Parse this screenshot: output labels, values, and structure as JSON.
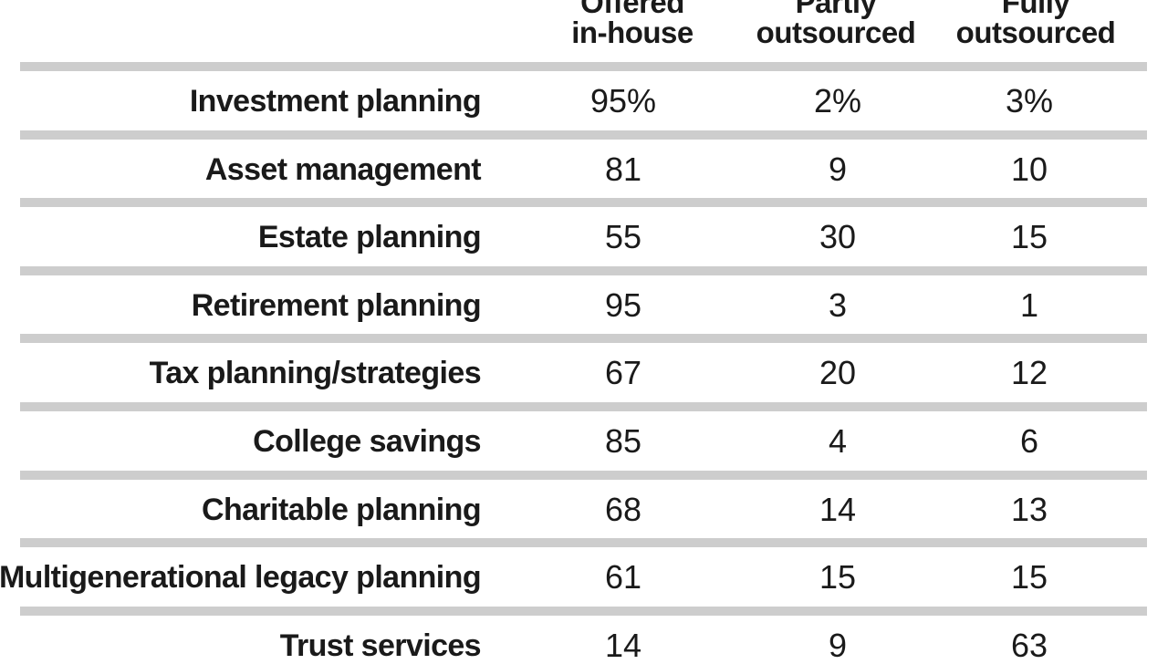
{
  "chart_data": {
    "type": "table",
    "columns": [
      {
        "lines": [
          "Offered",
          "in-house"
        ]
      },
      {
        "lines": [
          "Partly",
          "outsourced"
        ]
      },
      {
        "lines": [
          "Fully",
          "outsourced"
        ]
      }
    ],
    "rows": [
      {
        "label": "Investment planning",
        "values": [
          "95%",
          "2%",
          "3%"
        ]
      },
      {
        "label": "Asset management",
        "values": [
          "81",
          "9",
          "10"
        ]
      },
      {
        "label": "Estate planning",
        "values": [
          "55",
          "30",
          "15"
        ]
      },
      {
        "label": "Retirement planning",
        "values": [
          "95",
          "3",
          "1"
        ]
      },
      {
        "label": "Tax planning/strategies",
        "values": [
          "67",
          "20",
          "12"
        ]
      },
      {
        "label": "College savings",
        "values": [
          "85",
          "4",
          "6"
        ]
      },
      {
        "label": "Charitable planning",
        "values": [
          "68",
          "14",
          "13"
        ]
      },
      {
        "label": "Multigenerational legacy planning",
        "values": [
          "61",
          "15",
          "15"
        ]
      },
      {
        "label": "Trust services",
        "values": [
          "14",
          "9",
          "63"
        ]
      }
    ],
    "colors": {
      "band": "#cdcdcd",
      "text": "#1a1a1a",
      "background": "#ffffff"
    }
  }
}
